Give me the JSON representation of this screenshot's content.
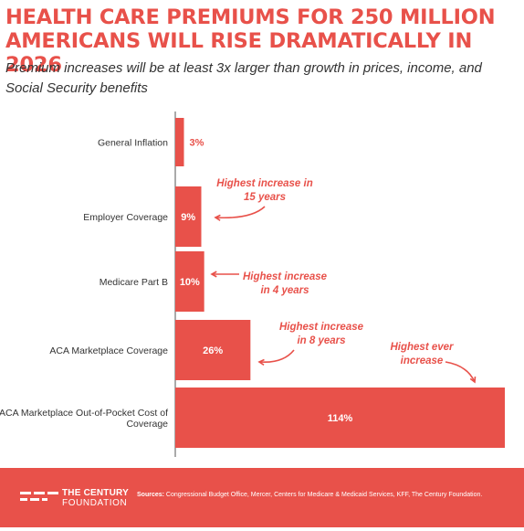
{
  "title": "HEALTH CARE PREMIUMS FOR 250 MILLION\nAMERICANS WILL RISE DRAMATICALLY IN 2026",
  "subtitle": "Premium increases will be at least 3x larger than growth in prices, income, and Social Security benefits",
  "colors": {
    "accent": "#e8514a",
    "text": "#333333",
    "axis": "#555555",
    "white": "#ffffff"
  },
  "chart_data": {
    "type": "bar",
    "orientation": "horizontal",
    "categories": [
      "General Inflation",
      "Employer Coverage",
      "Medicare Part B",
      "ACA Marketplace Coverage",
      "ACA Marketplace Out-of-Pocket Cost of Coverage"
    ],
    "values": [
      3,
      9,
      10,
      26,
      114
    ],
    "data_labels": [
      "3%",
      "9%",
      "10%",
      "26%",
      "114%"
    ],
    "xlim": [
      0,
      114
    ],
    "grid": false,
    "annotations": [
      {
        "category": "Employer Coverage",
        "text": "Highest increase in 15 years"
      },
      {
        "category": "Medicare Part B",
        "text": "Highest increase in 4 years"
      },
      {
        "category": "ACA Marketplace Coverage",
        "text": "Highest increase in 8 years"
      },
      {
        "category": "ACA Marketplace Out-of-Pocket Cost of Coverage",
        "text": "Highest ever increase"
      }
    ]
  },
  "footer": {
    "logo_line1": "THE CENTURY",
    "logo_line2": "FOUNDATION",
    "sources_label": "Sources:",
    "sources_text": "Congressional Budget Office, Mercer, Centers for Medicare & Medicaid Services, KFF, The Century Foundation."
  }
}
